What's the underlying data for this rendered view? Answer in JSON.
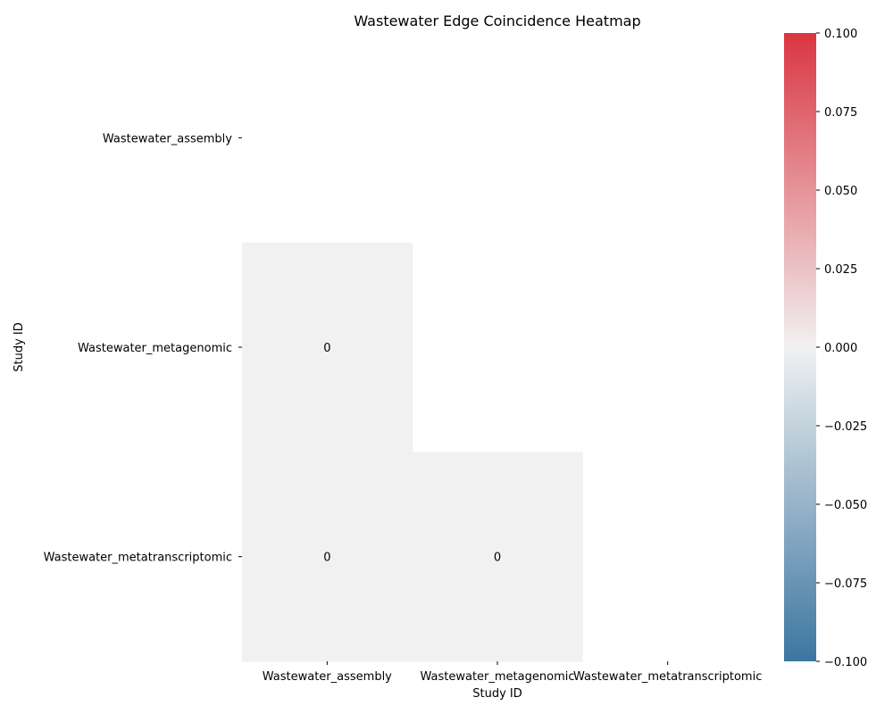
{
  "chart_data": {
    "type": "heatmap",
    "title": "Wastewater Edge Coincidence Heatmap",
    "xlabel": "Study ID",
    "ylabel": "Study ID",
    "x_categories": [
      "Wastewater_assembly",
      "Wastewater_metagenomic",
      "Wastewater_metatranscriptomic"
    ],
    "y_categories": [
      "Wastewater_assembly",
      "Wastewater_metagenomic",
      "Wastewater_metatranscriptomic"
    ],
    "mask": "upper-triangle-including-diagonal",
    "cells": [
      {
        "row": 1,
        "col": 0,
        "value": 0,
        "label": "0"
      },
      {
        "row": 2,
        "col": 0,
        "value": 0,
        "label": "0"
      },
      {
        "row": 2,
        "col": 1,
        "value": 0,
        "label": "0"
      }
    ],
    "colorbar": {
      "min": -0.1,
      "max": 0.1,
      "ticks": [
        "0.100",
        "0.075",
        "0.050",
        "0.025",
        "0.000",
        "−0.025",
        "−0.050",
        "−0.075",
        "−0.100"
      ],
      "tick_values": [
        0.1,
        0.075,
        0.05,
        0.025,
        0.0,
        -0.025,
        -0.05,
        -0.075,
        -0.1
      ],
      "colors": {
        "low": "#3b76a1",
        "mid": "#f1f1f1",
        "high": "#da3541"
      }
    }
  }
}
